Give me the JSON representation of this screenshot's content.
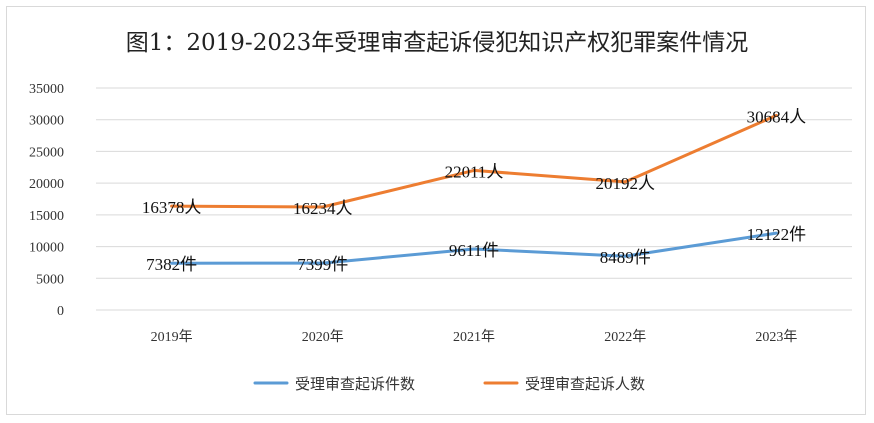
{
  "chart_data": {
    "type": "line",
    "title": "图1：2019-2023年受理审查起诉侵犯知识产权犯罪案件情况",
    "categories": [
      "2019年",
      "2020年",
      "2021年",
      "2022年",
      "2023年"
    ],
    "y_ticks": [
      "35000",
      "30000",
      "25000",
      "20000",
      "15000",
      "10000",
      "5000",
      "0"
    ],
    "ylim": [
      0,
      35000
    ],
    "grid": true,
    "legend_position": "bottom",
    "series": [
      {
        "name": "受理审查起诉件数",
        "color": "#5b9bd5",
        "values": [
          7382,
          7399,
          9611,
          8489,
          12122
        ],
        "labels": [
          "7382件",
          "7399件",
          "9611件",
          "8489件",
          "12122件"
        ]
      },
      {
        "name": "受理审查起诉人数",
        "color": "#ed7d31",
        "values": [
          16378,
          16234,
          22011,
          20192,
          30684
        ],
        "labels": [
          "16378人",
          "16234人",
          "22011人",
          "20192人",
          "30684人"
        ]
      }
    ]
  }
}
